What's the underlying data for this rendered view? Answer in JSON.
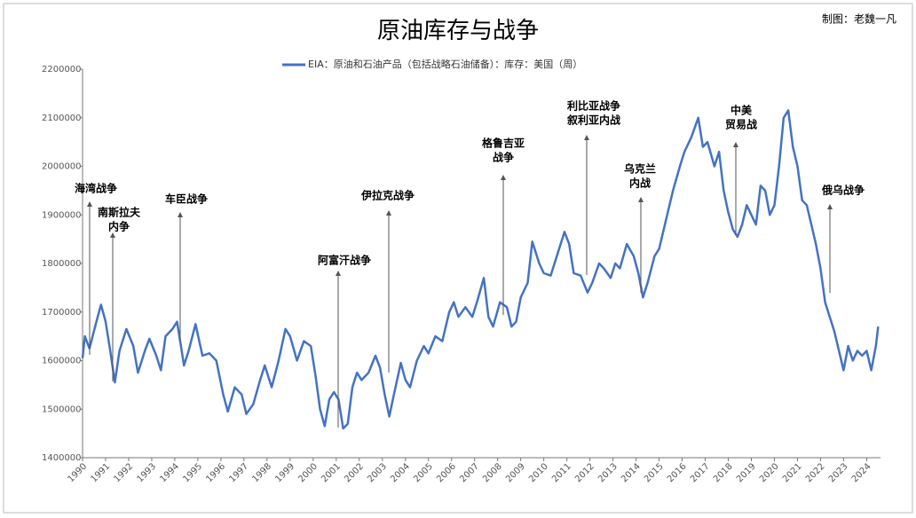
{
  "chart_data": {
    "type": "line",
    "title": "原油库存与战争",
    "author": "制图：老魏一凡",
    "series": [
      {
        "name": "EIA：原油和石油产品（包括战略石油储备）：库存：美国（周）",
        "color": "#4472c4",
        "x": [
          1990.0,
          1990.1,
          1990.3,
          1990.6,
          1990.8,
          1991.0,
          1991.2,
          1991.4,
          1991.6,
          1991.9,
          1992.2,
          1992.4,
          1992.7,
          1992.9,
          1993.2,
          1993.4,
          1993.6,
          1993.9,
          1994.1,
          1994.4,
          1994.6,
          1994.9,
          1995.2,
          1995.5,
          1995.8,
          1996.1,
          1996.3,
          1996.6,
          1996.9,
          1997.1,
          1997.4,
          1997.7,
          1997.9,
          1998.2,
          1998.5,
          1998.8,
          1999.0,
          1999.3,
          1999.6,
          1999.9,
          2000.1,
          2000.3,
          2000.5,
          2000.7,
          2000.9,
          2001.1,
          2001.3,
          2001.5,
          2001.7,
          2001.9,
          2002.1,
          2002.4,
          2002.7,
          2002.9,
          2003.1,
          2003.3,
          2003.5,
          2003.8,
          2004.0,
          2004.2,
          2004.5,
          2004.8,
          2005.0,
          2005.3,
          2005.6,
          2005.9,
          2006.1,
          2006.3,
          2006.6,
          2006.9,
          2007.1,
          2007.4,
          2007.6,
          2007.8,
          2008.1,
          2008.4,
          2008.6,
          2008.8,
          2009.0,
          2009.3,
          2009.5,
          2009.8,
          2010.0,
          2010.3,
          2010.6,
          2010.9,
          2011.1,
          2011.3,
          2011.6,
          2011.9,
          2012.1,
          2012.4,
          2012.6,
          2012.9,
          2013.1,
          2013.3,
          2013.6,
          2013.9,
          2014.1,
          2014.3,
          2014.5,
          2014.8,
          2015.0,
          2015.3,
          2015.6,
          2015.9,
          2016.1,
          2016.4,
          2016.7,
          2016.9,
          2017.1,
          2017.4,
          2017.6,
          2017.8,
          2018.0,
          2018.2,
          2018.4,
          2018.6,
          2018.8,
          2019.0,
          2019.2,
          2019.4,
          2019.6,
          2019.8,
          2020.0,
          2020.2,
          2020.4,
          2020.6,
          2020.8,
          2021.0,
          2021.2,
          2021.4,
          2021.6,
          2021.8,
          2022.0,
          2022.2,
          2022.4,
          2022.6,
          2022.8,
          2023.0,
          2023.2,
          2023.4,
          2023.6,
          2023.8,
          2024.0,
          2024.2,
          2024.4,
          2024.5
        ],
        "values": [
          1605000,
          1650000,
          1625000,
          1680000,
          1715000,
          1680000,
          1620000,
          1555000,
          1620000,
          1665000,
          1630000,
          1575000,
          1620000,
          1645000,
          1610000,
          1580000,
          1650000,
          1665000,
          1680000,
          1590000,
          1620000,
          1675000,
          1610000,
          1615000,
          1600000,
          1530000,
          1495000,
          1545000,
          1530000,
          1490000,
          1510000,
          1560000,
          1590000,
          1545000,
          1600000,
          1665000,
          1650000,
          1600000,
          1640000,
          1630000,
          1570000,
          1500000,
          1465000,
          1520000,
          1535000,
          1520000,
          1460000,
          1470000,
          1545000,
          1575000,
          1560000,
          1575000,
          1610000,
          1585000,
          1530000,
          1485000,
          1530000,
          1595000,
          1560000,
          1545000,
          1600000,
          1630000,
          1615000,
          1650000,
          1640000,
          1700000,
          1720000,
          1690000,
          1710000,
          1690000,
          1720000,
          1770000,
          1690000,
          1670000,
          1720000,
          1710000,
          1670000,
          1680000,
          1730000,
          1760000,
          1845000,
          1800000,
          1780000,
          1775000,
          1820000,
          1865000,
          1840000,
          1780000,
          1775000,
          1740000,
          1760000,
          1800000,
          1790000,
          1770000,
          1800000,
          1790000,
          1840000,
          1815000,
          1780000,
          1730000,
          1760000,
          1815000,
          1830000,
          1890000,
          1950000,
          2000000,
          2030000,
          2060000,
          2100000,
          2040000,
          2050000,
          2000000,
          2030000,
          1950000,
          1905000,
          1870000,
          1855000,
          1880000,
          1920000,
          1900000,
          1880000,
          1960000,
          1950000,
          1900000,
          1920000,
          2000000,
          2100000,
          2115000,
          2040000,
          2000000,
          1930000,
          1920000,
          1880000,
          1840000,
          1790000,
          1720000,
          1690000,
          1660000,
          1620000,
          1580000,
          1630000,
          1600000,
          1620000,
          1610000,
          1620000,
          1580000,
          1630000,
          1670000
        ]
      }
    ],
    "xlim": [
      1990,
      2024.6
    ],
    "xticks": [
      1990,
      1991,
      1992,
      1993,
      1994,
      1995,
      1996,
      1997,
      1998,
      1999,
      2000,
      2001,
      2002,
      2003,
      2004,
      2005,
      2006,
      2007,
      2008,
      2009,
      2010,
      2011,
      2012,
      2013,
      2014,
      2015,
      2016,
      2017,
      2018,
      2019,
      2020,
      2021,
      2022,
      2023,
      2024
    ],
    "ylim": [
      1400000,
      2200000
    ],
    "yticks": [
      1400000,
      1500000,
      1600000,
      1700000,
      1800000,
      1900000,
      2000000,
      2100000,
      2200000
    ],
    "annotations": [
      [
        "海湾战争"
      ],
      [
        "南斯拉夫",
        "内争"
      ],
      [
        "车臣战争"
      ],
      [
        "阿富汗战争"
      ],
      [
        "伊拉克战争"
      ],
      [
        "格鲁吉亚",
        "战争"
      ],
      [
        "利比亚战争",
        "叙利亚内战"
      ],
      [
        "乌克兰",
        "内战"
      ],
      [
        "中美",
        "贸易战"
      ],
      [
        "俄乌战争"
      ]
    ]
  }
}
